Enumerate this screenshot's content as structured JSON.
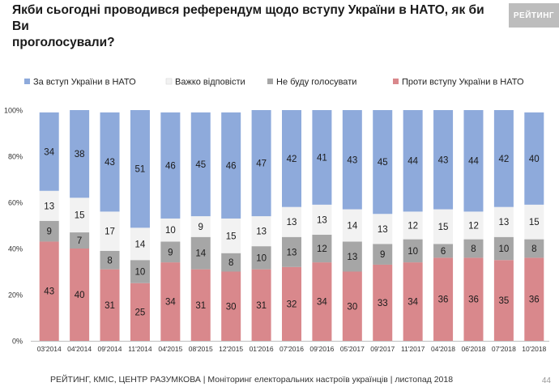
{
  "header": {
    "title_line1": "Якби сьогодні проводився референдум щодо вступу України в НАТО, як би Ви",
    "title_line2": "проголосували?",
    "brand_label": "РЕЙТИНГ"
  },
  "footer": {
    "source_text": "РЕЙТИНГ, КМІС, ЦЕНТР РАЗУМКОВА | Моніторинг електоральних настроїв українців | листопад 2018",
    "page_number": "44"
  },
  "chart_data": {
    "type": "bar",
    "stacked": true,
    "categories": [
      "03'2014",
      "04'2014",
      "09'2014",
      "11'2014",
      "04'2015",
      "08'2015",
      "12'2015",
      "01'2016",
      "07'2016",
      "09'2016",
      "05'2017",
      "09'2017",
      "11'2017",
      "04'2018",
      "06'2018",
      "07'2018",
      "10'2018"
    ],
    "series": [
      {
        "name": "Проти вступу України в НАТО",
        "color": "#d9888c",
        "values": [
          43,
          40,
          31,
          25,
          34,
          31,
          30,
          31,
          32,
          34,
          30,
          33,
          34,
          36,
          36,
          35,
          36
        ]
      },
      {
        "name": "Не буду голосувати",
        "color": "#a6a6a6",
        "values": [
          9,
          7,
          8,
          10,
          9,
          14,
          8,
          10,
          13,
          12,
          13,
          9,
          10,
          6,
          8,
          10,
          8
        ]
      },
      {
        "name": "Важко відповісти",
        "color": "#f2f2f2",
        "values": [
          13,
          15,
          17,
          14,
          10,
          9,
          15,
          13,
          13,
          13,
          14,
          13,
          12,
          15,
          12,
          13,
          15
        ]
      },
      {
        "name": "За вступ України в НАТО",
        "color": "#8eaadb",
        "values": [
          34,
          38,
          43,
          51,
          46,
          45,
          46,
          47,
          42,
          41,
          43,
          45,
          44,
          43,
          44,
          42,
          40
        ]
      }
    ],
    "legend_order": [
      "За вступ України в НАТО",
      "Важко відповісти",
      "Не буду голосувати",
      "Проти вступу України в НАТО"
    ],
    "legend_position": "top",
    "ylim": [
      0,
      100
    ],
    "yticks": [
      "0%",
      "20%",
      "40%",
      "60%",
      "80%",
      "100%"
    ],
    "grid": false
  }
}
